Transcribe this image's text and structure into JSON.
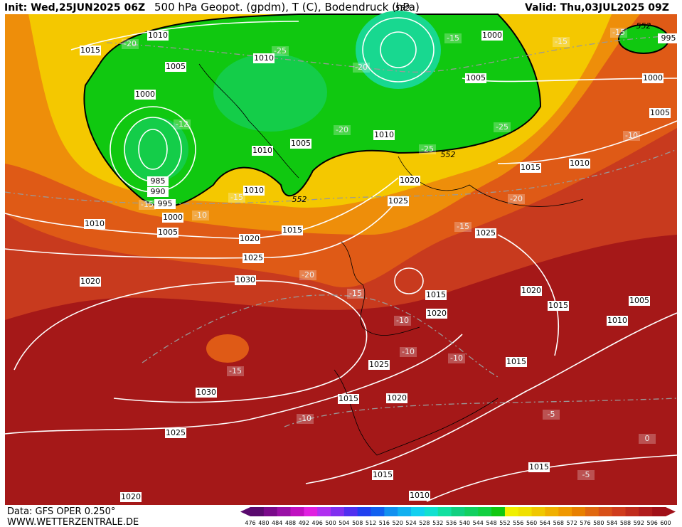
{
  "header": {
    "init": "Init: Wed,25JUN2025 06Z",
    "title": "500 hPa Geopot. (gpdm), T (C), Bodendruck (hPa)",
    "valid": "Valid: Thu,03JUL2025 09Z"
  },
  "pressure_labels": [
    "1010",
    "1015",
    "1010",
    "1005",
    "1000",
    "1000",
    "1005",
    "1000",
    "1005",
    "1010",
    "1005",
    "1010",
    "1015",
    "1010",
    "985",
    "990",
    "995",
    "1010",
    "1020",
    "1025",
    "1000",
    "1005",
    "1010",
    "1015",
    "1025",
    "1020",
    "1025",
    "1020",
    "1030",
    "1015",
    "1020",
    "1015",
    "1005",
    "1020",
    "1010",
    "1015",
    "1025",
    "1030",
    "1015",
    "1020",
    "1025",
    "1015",
    "1015",
    "1020",
    "1010",
    "995"
  ],
  "temperature_labels": [
    "-20",
    "-25",
    "-20",
    "-15",
    "-15",
    "-15",
    "-12",
    "-20",
    "-25",
    "-25",
    "-10",
    "-15",
    "-10",
    "-15",
    "-20",
    "-15",
    "-20",
    "-15",
    "-10",
    "-10",
    "-10",
    "-15",
    "-10",
    "-5",
    "-5",
    "0"
  ],
  "height_labels": [
    "552",
    "552",
    "552",
    "552"
  ],
  "footer": {
    "data": "Data: GFS OPER 0.250°",
    "site": "WWW.WETTERZENTRALE.DE"
  },
  "scale": {
    "labels": [
      "476",
      "480",
      "484",
      "488",
      "492",
      "496",
      "500",
      "504",
      "508",
      "512",
      "516",
      "520",
      "524",
      "528",
      "532",
      "536",
      "540",
      "544",
      "548",
      "552",
      "556",
      "560",
      "564",
      "568",
      "572",
      "576",
      "580",
      "584",
      "588",
      "592",
      "596",
      "600"
    ],
    "colors": [
      "#5a0a6e",
      "#7a0a8a",
      "#9a10a6",
      "#c010c0",
      "#e020e0",
      "#b030f0",
      "#8030f0",
      "#5030f0",
      "#2040f0",
      "#1060f0",
      "#1090f0",
      "#10b0f0",
      "#10d0f0",
      "#10e0d0",
      "#10e0a0",
      "#10d080",
      "#10d060",
      "#10d040",
      "#10c810",
      "#f0f000",
      "#f0e000",
      "#f0c800",
      "#f0b000",
      "#f09800",
      "#e88000",
      "#e06810",
      "#d85018",
      "#d03c1c",
      "#c02c1c",
      "#b01c1c",
      "#a01018"
    ]
  }
}
